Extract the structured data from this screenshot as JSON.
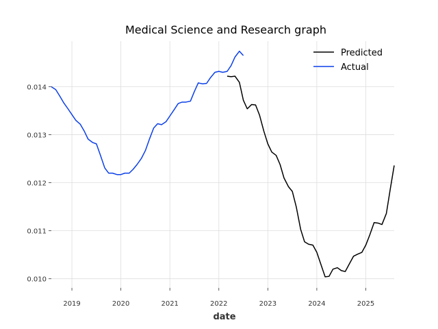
{
  "chart_data": {
    "type": "line",
    "title": "Medical Science and Research graph",
    "xlabel": "date",
    "ylabel": "",
    "xlim": [
      2018.58,
      2025.58
    ],
    "ylim": [
      0.00981,
      0.01495
    ],
    "x_ticks": [
      2019,
      2020,
      2021,
      2022,
      2023,
      2024,
      2025
    ],
    "x_tick_labels": [
      "2019",
      "2020",
      "2021",
      "2022",
      "2023",
      "2024",
      "2025"
    ],
    "y_ticks": [
      0.01,
      0.011,
      0.012,
      0.013,
      0.014
    ],
    "y_tick_labels": [
      "0.010",
      "0.011",
      "0.012",
      "0.013",
      "0.014"
    ],
    "grid": true,
    "legend_position": "top-right",
    "series": [
      {
        "name": "Predicted",
        "color": "#000000",
        "points": [
          [
            2022.17,
            0.01422
          ],
          [
            2022.25,
            0.01421
          ],
          [
            2022.33,
            0.01422
          ],
          [
            2022.42,
            0.01409
          ],
          [
            2022.5,
            0.01372
          ],
          [
            2022.58,
            0.01354
          ],
          [
            2022.67,
            0.01363
          ],
          [
            2022.75,
            0.01362
          ],
          [
            2022.83,
            0.01341
          ],
          [
            2022.92,
            0.01307
          ],
          [
            2023.0,
            0.01281
          ],
          [
            2023.08,
            0.01264
          ],
          [
            2023.17,
            0.01257
          ],
          [
            2023.25,
            0.01238
          ],
          [
            2023.33,
            0.0121
          ],
          [
            2023.42,
            0.01192
          ],
          [
            2023.5,
            0.01182
          ],
          [
            2023.58,
            0.0115
          ],
          [
            2023.67,
            0.01103
          ],
          [
            2023.75,
            0.01077
          ],
          [
            2023.83,
            0.01072
          ],
          [
            2023.92,
            0.0107
          ],
          [
            2024.0,
            0.01055
          ],
          [
            2024.08,
            0.01031
          ],
          [
            2024.17,
            0.01004
          ],
          [
            2024.25,
            0.01005
          ],
          [
            2024.33,
            0.0102
          ],
          [
            2024.42,
            0.01023
          ],
          [
            2024.5,
            0.01017
          ],
          [
            2024.58,
            0.01015
          ],
          [
            2024.67,
            0.01032
          ],
          [
            2024.75,
            0.01047
          ],
          [
            2024.83,
            0.01051
          ],
          [
            2024.92,
            0.01055
          ],
          [
            2025.0,
            0.0107
          ],
          [
            2025.08,
            0.01091
          ],
          [
            2025.17,
            0.01117
          ],
          [
            2025.25,
            0.01116
          ],
          [
            2025.33,
            0.01113
          ],
          [
            2025.42,
            0.01136
          ],
          [
            2025.5,
            0.01187
          ],
          [
            2025.58,
            0.01236
          ]
        ]
      },
      {
        "name": "Actual",
        "color": "#0a3fe8",
        "points": [
          [
            2018.58,
            0.014
          ],
          [
            2018.67,
            0.01394
          ],
          [
            2018.75,
            0.01381
          ],
          [
            2018.83,
            0.01367
          ],
          [
            2018.92,
            0.01354
          ],
          [
            2019.0,
            0.01342
          ],
          [
            2019.08,
            0.0133
          ],
          [
            2019.17,
            0.01322
          ],
          [
            2019.25,
            0.01308
          ],
          [
            2019.33,
            0.01291
          ],
          [
            2019.42,
            0.01284
          ],
          [
            2019.5,
            0.01281
          ],
          [
            2019.58,
            0.01258
          ],
          [
            2019.67,
            0.01231
          ],
          [
            2019.75,
            0.0122
          ],
          [
            2019.83,
            0.0122
          ],
          [
            2019.92,
            0.01217
          ],
          [
            2020.0,
            0.01217
          ],
          [
            2020.08,
            0.0122
          ],
          [
            2020.17,
            0.0122
          ],
          [
            2020.25,
            0.01228
          ],
          [
            2020.33,
            0.01238
          ],
          [
            2020.42,
            0.01251
          ],
          [
            2020.5,
            0.01267
          ],
          [
            2020.58,
            0.0129
          ],
          [
            2020.67,
            0.01314
          ],
          [
            2020.75,
            0.01323
          ],
          [
            2020.83,
            0.01321
          ],
          [
            2020.92,
            0.01327
          ],
          [
            2021.0,
            0.01339
          ],
          [
            2021.08,
            0.01351
          ],
          [
            2021.17,
            0.01365
          ],
          [
            2021.25,
            0.01368
          ],
          [
            2021.33,
            0.01368
          ],
          [
            2021.42,
            0.0137
          ],
          [
            2021.5,
            0.0139
          ],
          [
            2021.58,
            0.01408
          ],
          [
            2021.67,
            0.01406
          ],
          [
            2021.75,
            0.01407
          ],
          [
            2021.83,
            0.01419
          ],
          [
            2021.92,
            0.0143
          ],
          [
            2022.0,
            0.01432
          ],
          [
            2022.08,
            0.0143
          ],
          [
            2022.17,
            0.01432
          ],
          [
            2022.25,
            0.01444
          ],
          [
            2022.33,
            0.01462
          ],
          [
            2022.42,
            0.01474
          ],
          [
            2022.5,
            0.01465
          ]
        ]
      }
    ]
  }
}
